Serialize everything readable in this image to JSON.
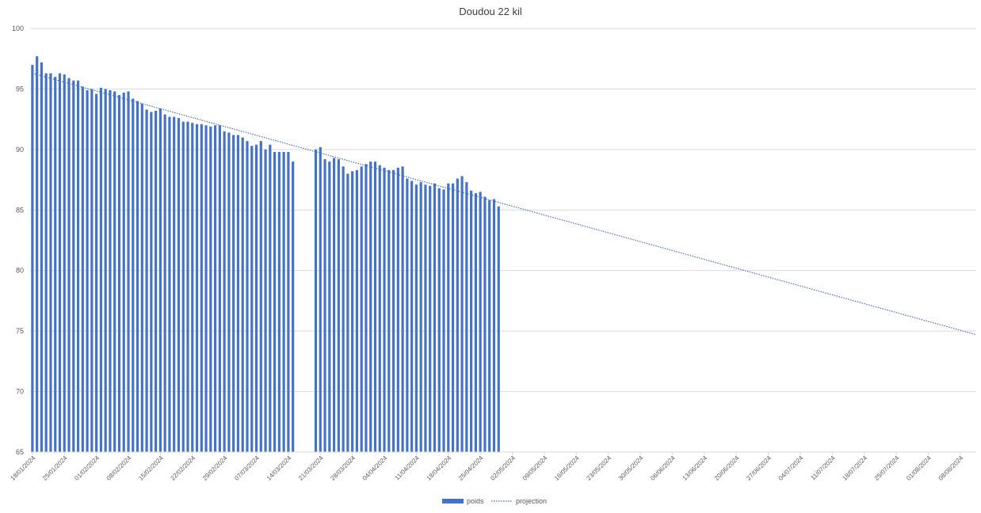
{
  "chart_data": {
    "type": "bar",
    "title": "Doudou 22 kil",
    "xlabel": "",
    "ylabel": "",
    "x_start": "18/01/2024",
    "x_end": "12/08/2024",
    "ylim": [
      65,
      100
    ],
    "yticks": [
      65,
      70,
      75,
      80,
      85,
      90,
      95,
      100
    ],
    "x_ticks": [
      "18/01/2024",
      "25/01/2024",
      "01/02/2024",
      "08/02/2024",
      "15/02/2024",
      "22/02/2024",
      "29/02/2024",
      "07/03/2024",
      "14/03/2024",
      "21/03/2024",
      "28/03/2024",
      "04/04/2024",
      "11/04/2024",
      "18/04/2024",
      "25/04/2024",
      "02/05/2024",
      "09/05/2024",
      "16/05/2024",
      "23/05/2024",
      "30/05/2024",
      "06/06/2024",
      "13/06/2024",
      "20/06/2024",
      "27/06/2024",
      "04/07/2024",
      "11/07/2024",
      "18/07/2024",
      "25/07/2024",
      "01/08/2024",
      "08/08/2024"
    ],
    "grid": true,
    "legend_position": "bottom",
    "colors": {
      "bar": "#4472C4",
      "trend": "#4472C4",
      "grid": "#D9D9D9",
      "axis_text": "#595959"
    },
    "series": [
      {
        "name": "poids",
        "kind": "bar",
        "points": [
          [
            "18/01/2024",
            97.0
          ],
          [
            "19/01/2024",
            97.7
          ],
          [
            "20/01/2024",
            97.2
          ],
          [
            "21/01/2024",
            96.3
          ],
          [
            "22/01/2024",
            96.3
          ],
          [
            "23/01/2024",
            96.0
          ],
          [
            "24/01/2024",
            96.3
          ],
          [
            "25/01/2024",
            96.2
          ],
          [
            "26/01/2024",
            95.9
          ],
          [
            "27/01/2024",
            95.7
          ],
          [
            "28/01/2024",
            95.7
          ],
          [
            "29/01/2024",
            95.2
          ],
          [
            "30/01/2024",
            94.9
          ],
          [
            "31/01/2024",
            95.0
          ],
          [
            "01/02/2024",
            94.6
          ],
          [
            "02/02/2024",
            95.1
          ],
          [
            "03/02/2024",
            95.0
          ],
          [
            "04/02/2024",
            94.9
          ],
          [
            "05/02/2024",
            94.8
          ],
          [
            "06/02/2024",
            94.5
          ],
          [
            "07/02/2024",
            94.7
          ],
          [
            "08/02/2024",
            94.8
          ],
          [
            "09/02/2024",
            94.2
          ],
          [
            "10/02/2024",
            94.0
          ],
          [
            "11/02/2024",
            93.8
          ],
          [
            "12/02/2024",
            93.3
          ],
          [
            "13/02/2024",
            93.1
          ],
          [
            "14/02/2024",
            93.2
          ],
          [
            "15/02/2024",
            93.4
          ],
          [
            "16/02/2024",
            92.9
          ],
          [
            "17/02/2024",
            92.7
          ],
          [
            "18/02/2024",
            92.7
          ],
          [
            "19/02/2024",
            92.6
          ],
          [
            "20/02/2024",
            92.3
          ],
          [
            "21/02/2024",
            92.3
          ],
          [
            "22/02/2024",
            92.2
          ],
          [
            "23/02/2024",
            92.1
          ],
          [
            "24/02/2024",
            92.1
          ],
          [
            "25/02/2024",
            92.0
          ],
          [
            "26/02/2024",
            91.9
          ],
          [
            "27/02/2024",
            92.0
          ],
          [
            "28/02/2024",
            92.0
          ],
          [
            "29/02/2024",
            91.5
          ],
          [
            "01/03/2024",
            91.4
          ],
          [
            "02/03/2024",
            91.2
          ],
          [
            "03/03/2024",
            91.2
          ],
          [
            "04/03/2024",
            91.0
          ],
          [
            "05/03/2024",
            90.7
          ],
          [
            "06/03/2024",
            90.3
          ],
          [
            "07/03/2024",
            90.4
          ],
          [
            "08/03/2024",
            90.7
          ],
          [
            "09/03/2024",
            90.0
          ],
          [
            "10/03/2024",
            90.4
          ],
          [
            "11/03/2024",
            89.8
          ],
          [
            "12/03/2024",
            89.8
          ],
          [
            "13/03/2024",
            89.8
          ],
          [
            "14/03/2024",
            89.8
          ],
          [
            "15/03/2024",
            89.0
          ],
          [
            "20/03/2024",
            90.0
          ],
          [
            "21/03/2024",
            90.2
          ],
          [
            "22/03/2024",
            89.2
          ],
          [
            "23/03/2024",
            89.0
          ],
          [
            "24/03/2024",
            89.3
          ],
          [
            "25/03/2024",
            89.2
          ],
          [
            "26/03/2024",
            88.6
          ],
          [
            "27/03/2024",
            88.0
          ],
          [
            "28/03/2024",
            88.2
          ],
          [
            "29/03/2024",
            88.3
          ],
          [
            "30/03/2024",
            88.6
          ],
          [
            "31/03/2024",
            88.8
          ],
          [
            "01/04/2024",
            89.0
          ],
          [
            "02/04/2024",
            89.0
          ],
          [
            "03/04/2024",
            88.7
          ],
          [
            "04/04/2024",
            88.5
          ],
          [
            "05/04/2024",
            88.3
          ],
          [
            "06/04/2024",
            88.3
          ],
          [
            "07/04/2024",
            88.5
          ],
          [
            "08/04/2024",
            88.6
          ],
          [
            "09/04/2024",
            87.6
          ],
          [
            "10/04/2024",
            87.4
          ],
          [
            "11/04/2024",
            87.1
          ],
          [
            "12/04/2024",
            87.3
          ],
          [
            "13/04/2024",
            87.1
          ],
          [
            "14/04/2024",
            87.0
          ],
          [
            "15/04/2024",
            87.2
          ],
          [
            "16/04/2024",
            86.8
          ],
          [
            "17/04/2024",
            86.7
          ],
          [
            "18/04/2024",
            87.2
          ],
          [
            "19/04/2024",
            87.2
          ],
          [
            "20/04/2024",
            87.6
          ],
          [
            "21/04/2024",
            87.8
          ],
          [
            "22/04/2024",
            87.3
          ],
          [
            "23/04/2024",
            86.6
          ],
          [
            "24/04/2024",
            86.4
          ],
          [
            "25/04/2024",
            86.5
          ],
          [
            "26/04/2024",
            86.1
          ],
          [
            "27/04/2024",
            85.8
          ],
          [
            "28/04/2024",
            85.9
          ],
          [
            "29/04/2024",
            85.3
          ]
        ]
      },
      {
        "name": "projection",
        "kind": "trendline",
        "from": [
          "18/01/2024",
          96.3
        ],
        "to": [
          "12/08/2024",
          74.7
        ]
      }
    ]
  }
}
